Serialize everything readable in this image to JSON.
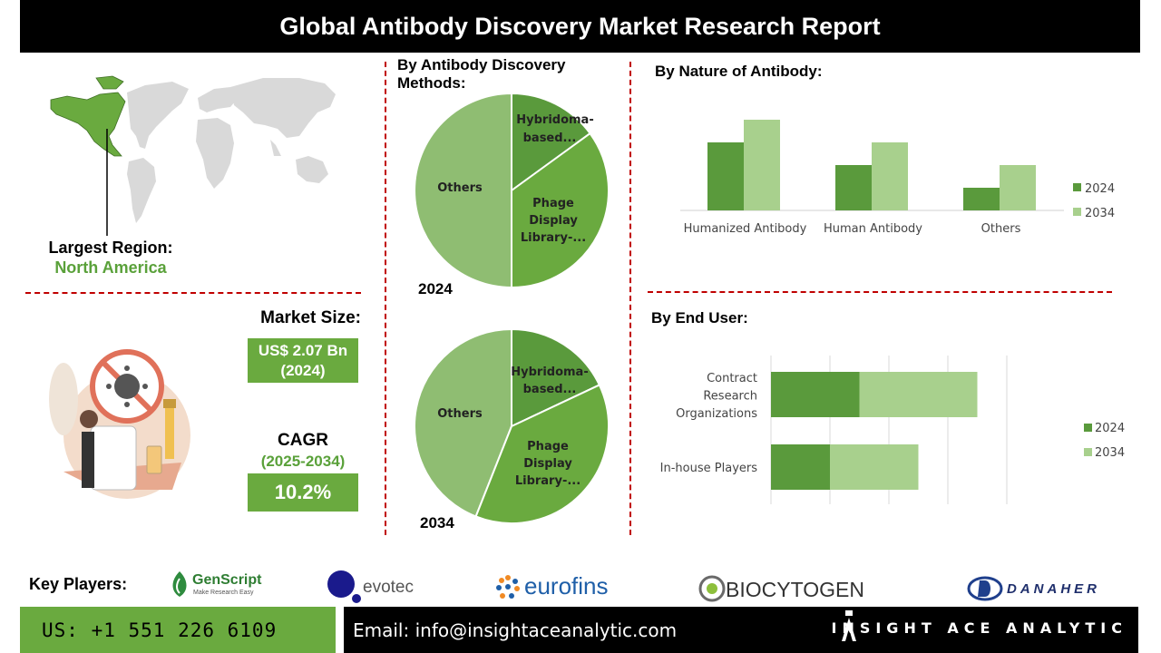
{
  "title": "Global Antibody Discovery Market Research Report",
  "region": {
    "label": "Largest Region:",
    "value": "North America"
  },
  "market_size": {
    "label": "Market Size:",
    "value_line1": "US$ 2.07 Bn",
    "value_line2": "(2024)"
  },
  "cagr": {
    "label": "CAGR",
    "period": "(2025-2034)",
    "value": "10.2%"
  },
  "methods": {
    "title_line1": "By Antibody Discovery",
    "title_line2": "Methods:",
    "year_2024": "2024",
    "year_2034": "2034",
    "slice_labels": {
      "hybridoma_1": "Hybridoma-",
      "hybridoma_2": "based...",
      "phage_1": "Phage",
      "phage_2": "Display",
      "phage_3": "Library-...",
      "others": "Others"
    }
  },
  "nature": {
    "title": "By Nature of Antibody:"
  },
  "end_user": {
    "title": "By End User:"
  },
  "key_players": {
    "label": "Key Players:",
    "genscript": "GenScript",
    "genscript_tagline": "Make Research Easy",
    "evotec": "evotec",
    "eurofins": "eurofins",
    "biocytogen": "BIOCYTOGEN",
    "danaher": "DANAHER"
  },
  "footer": {
    "phone": "US: +1 551 226 6109",
    "email": "Email: info@insightaceanalytic.com",
    "brand": "INSIGHT ACE ANALYTIC"
  },
  "colors": {
    "dark_green": "#5a9a3c",
    "mid_green": "#6aaa3f",
    "light_green": "#9dc77f",
    "pale_green": "#a8d08d",
    "red_dash": "#c00000"
  },
  "chart_data": [
    {
      "type": "pie",
      "id": "methods-2024",
      "categories": [
        "Hybridoma-based...",
        "Phage Display Library-...",
        "Others"
      ],
      "values": [
        15,
        35,
        50
      ]
    },
    {
      "type": "pie",
      "id": "methods-2034",
      "categories": [
        "Hybridoma-based...",
        "Phage Display Library-...",
        "Others"
      ],
      "values": [
        18,
        38,
        44
      ]
    },
    {
      "type": "bar",
      "id": "nature",
      "categories": [
        "Humanized Antibody",
        "Human Antibody",
        "Others"
      ],
      "series": [
        {
          "name": "2024",
          "values": [
            3,
            2,
            1
          ]
        },
        {
          "name": "2034",
          "values": [
            4,
            3,
            2
          ]
        }
      ],
      "ylim": [
        0,
        4
      ],
      "legend": "right"
    },
    {
      "type": "bar",
      "id": "end-user",
      "orientation": "horizontal",
      "stacked": true,
      "categories": [
        "Contract Research Organizations",
        "In-house Players"
      ],
      "category_lines": [
        [
          "Contract",
          "Research",
          "Organizations"
        ],
        [
          "In-house Players"
        ]
      ],
      "series": [
        {
          "name": "2024",
          "values": [
            1.5,
            1.0
          ]
        },
        {
          "name": "2034",
          "values": [
            2.0,
            1.5
          ]
        }
      ],
      "xlim": [
        0,
        4
      ],
      "legend": "right"
    }
  ]
}
